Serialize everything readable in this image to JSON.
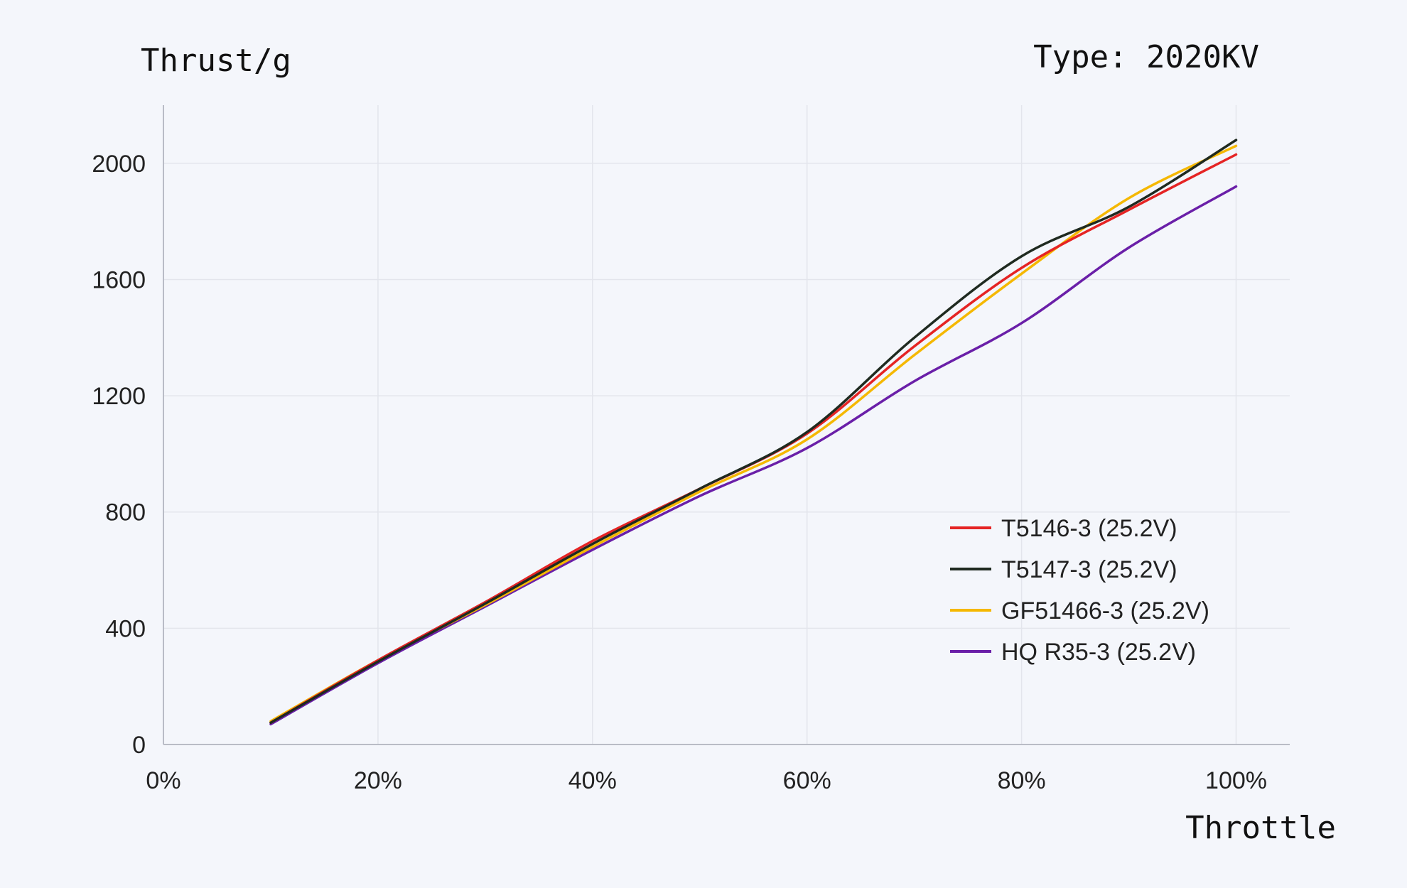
{
  "chart_data": {
    "type": "line",
    "title": "Type: 2020KV",
    "xlabel": "Throttle",
    "ylabel": "Thrust/g",
    "x_ticks": [
      "0%",
      "20%",
      "40%",
      "60%",
      "80%",
      "100%"
    ],
    "y_ticks": [
      "0",
      "400",
      "800",
      "1200",
      "1600",
      "2000"
    ],
    "xlim": [
      0,
      105
    ],
    "ylim": [
      0,
      2200
    ],
    "x": [
      10,
      20,
      30,
      40,
      50,
      60,
      70,
      80,
      90,
      100
    ],
    "grid": true,
    "legend_position": "lower-right",
    "series": [
      {
        "name": "T5146-3 (25.2V)",
        "color": "#e52424",
        "values": [
          75,
          290,
          490,
          700,
          880,
          1070,
          1370,
          1640,
          1840,
          2030
        ]
      },
      {
        "name": "T5147-3 (25.2V)",
        "color": "#1f2a20",
        "values": [
          75,
          285,
          485,
          690,
          880,
          1075,
          1400,
          1680,
          1850,
          2080
        ]
      },
      {
        "name": "GF51466-3 (25.2V)",
        "color": "#f5b800",
        "values": [
          80,
          290,
          480,
          680,
          870,
          1050,
          1340,
          1620,
          1880,
          2060
        ]
      },
      {
        "name": "HQ R35-3 (25.2V)",
        "color": "#6a1fa8",
        "values": [
          70,
          280,
          475,
          670,
          855,
          1020,
          1250,
          1450,
          1710,
          1920
        ]
      }
    ]
  }
}
